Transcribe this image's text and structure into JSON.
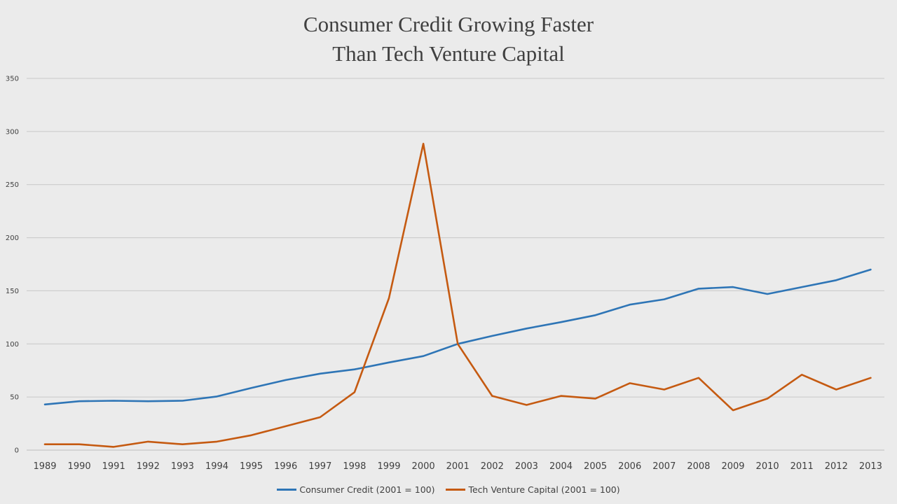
{
  "chart_data": {
    "type": "line",
    "title_lines": [
      "Consumer Credit Growing Faster",
      "Than Tech Venture Capital"
    ],
    "xlabel": "",
    "ylabel": "",
    "categories": [
      "1989",
      "1990",
      "1991",
      "1992",
      "1993",
      "1994",
      "1995",
      "1996",
      "1997",
      "1998",
      "1999",
      "2000",
      "2001",
      "2002",
      "2003",
      "2004",
      "2005",
      "2006",
      "2007",
      "2008",
      "2009",
      "2010",
      "2011",
      "2012",
      "2013"
    ],
    "ylim": [
      0,
      350
    ],
    "yticks": [
      0,
      50,
      100,
      150,
      200,
      250,
      300,
      350
    ],
    "grid": true,
    "legend_position": "bottom",
    "series": [
      {
        "name": "Consumer Credit (2001 = 100)",
        "color": "#2e75b6",
        "values": [
          43,
          46,
          46.5,
          46,
          46.5,
          50.5,
          58.5,
          66,
          72,
          76,
          82.5,
          88.5,
          100,
          107.5,
          114.5,
          120.5,
          127,
          137,
          142,
          152,
          153.5,
          147,
          153.5,
          160,
          170
        ]
      },
      {
        "name": "Tech Venture Capital (2001 = 100)",
        "color": "#c55a11",
        "values": [
          5.5,
          5.5,
          3,
          8,
          5.5,
          8,
          14,
          22.5,
          31,
          54.5,
          143,
          288.5,
          100,
          51,
          42.5,
          51,
          48.5,
          63,
          57,
          68,
          37.5,
          48.5,
          71,
          57,
          68
        ]
      }
    ]
  }
}
